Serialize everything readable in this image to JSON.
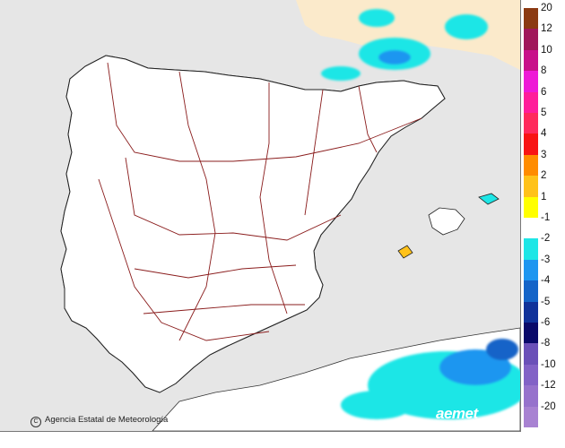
{
  "credit": {
    "symbol": "C",
    "text": "Agencia Estatal de Meteorología"
  },
  "logo": {
    "text": "aemet"
  },
  "legend": [
    {
      "label": "20",
      "color": "#8b3a12"
    },
    {
      "label": "12",
      "color": "#a0185a"
    },
    {
      "label": "10",
      "color": "#c8108a"
    },
    {
      "label": "8",
      "color": "#ee1ad6"
    },
    {
      "label": "6",
      "color": "#ff1e9a"
    },
    {
      "label": "5",
      "color": "#ff2a5c"
    },
    {
      "label": "4",
      "color": "#f81414"
    },
    {
      "label": "3",
      "color": "#ff8c00"
    },
    {
      "label": "2",
      "color": "#ffc21a"
    },
    {
      "label": "1",
      "color": "#ffff00"
    },
    {
      "label": "-1",
      "color": "#ffffff"
    },
    {
      "label": "-2",
      "color": "#1ee6e6"
    },
    {
      "label": "-3",
      "color": "#1e96f0"
    },
    {
      "label": "-4",
      "color": "#1464c8"
    },
    {
      "label": "-5",
      "color": "#10329a"
    },
    {
      "label": "-6",
      "color": "#0a0a6a"
    },
    {
      "label": "-8",
      "color": "#6a50b8"
    },
    {
      "label": "-10",
      "color": "#8262c6"
    },
    {
      "label": "-12",
      "color": "#9672cc"
    },
    {
      "label": "-20",
      "color": "#a882d2"
    }
  ],
  "map_colors": {
    "sea": "#e6e6e6",
    "france": "#fbeacb",
    "land": "#ffffff",
    "border": "#8a1c1c",
    "coast": "#222222"
  },
  "icons": {
    "credit": "copyright-icon",
    "logo": "aemet-logo"
  }
}
